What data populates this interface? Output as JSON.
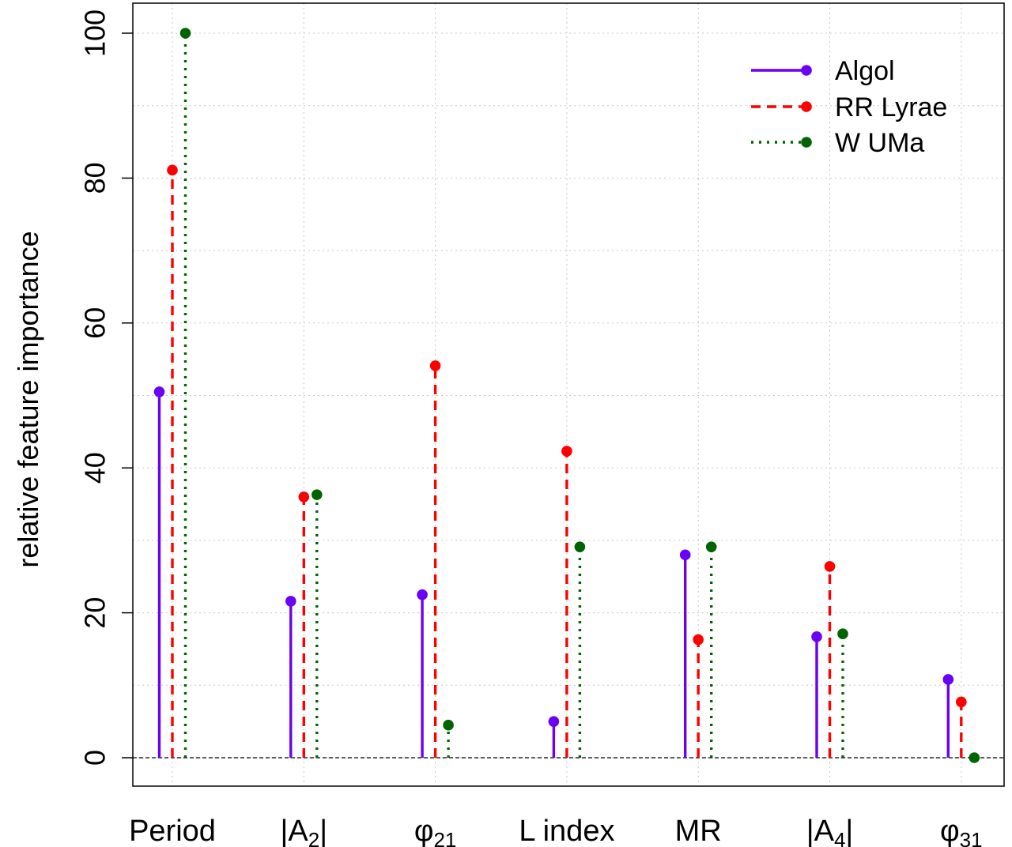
{
  "chart_data": {
    "type": "lollipop",
    "title": "",
    "xlabel": "",
    "ylabel": "relative feature importance",
    "ylim": [
      -4,
      104
    ],
    "yticks": [
      0,
      20,
      40,
      60,
      80,
      100
    ],
    "grid": true,
    "legend_position": "top-right",
    "categories": [
      {
        "base": "Period",
        "sub": ""
      },
      {
        "base": "|A",
        "sub": "2",
        "suffix": "|"
      },
      {
        "base": "φ",
        "sub": "21"
      },
      {
        "base": "L index",
        "sub": ""
      },
      {
        "base": "MR",
        "sub": ""
      },
      {
        "base": "|A",
        "sub": "4",
        "suffix": "|"
      },
      {
        "base": "φ",
        "sub": "31"
      }
    ],
    "series": [
      {
        "name": "Algol",
        "color": "#6a00f4",
        "line_style": "solid",
        "values": [
          50.5,
          21.6,
          22.5,
          5.0,
          28.0,
          16.7,
          10.8
        ]
      },
      {
        "name": "RR Lyrae",
        "color": "#ff0000",
        "line_style": "dashed",
        "values": [
          81.1,
          36.0,
          54.1,
          42.3,
          16.3,
          26.4,
          7.7
        ]
      },
      {
        "name": "W UMa",
        "color": "#006400",
        "line_style": "dotted",
        "values": [
          100.0,
          36.3,
          4.5,
          29.1,
          29.1,
          17.1,
          0.0
        ]
      }
    ]
  }
}
